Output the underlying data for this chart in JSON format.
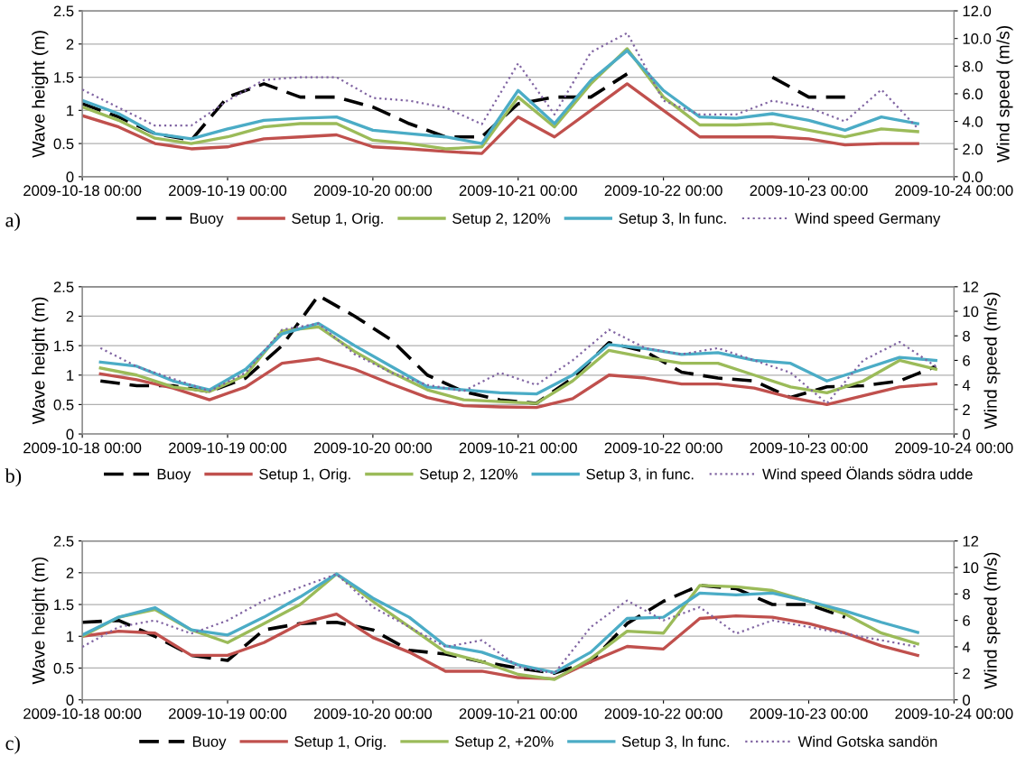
{
  "chart_data": [
    {
      "type": "line",
      "ylabel": "Wave height (m)",
      "y2label": "Wind speed (m/s)",
      "annotations": [
        "a)"
      ],
      "legend": "bottom",
      "grid": "y",
      "marker": "none",
      "x": [
        "2009-10-18T00:00",
        "2009-10-18T06:00",
        "2009-10-18T12:00",
        "2009-10-18T18:00",
        "2009-10-19T00:00",
        "2009-10-19T06:00",
        "2009-10-19T12:00",
        "2009-10-19T18:00",
        "2009-10-20T00:00",
        "2009-10-20T06:00",
        "2009-10-20T12:00",
        "2009-10-20T18:00",
        "2009-10-21T00:00",
        "2009-10-21T06:00",
        "2009-10-21T12:00",
        "2009-10-21T18:00",
        "2009-10-22T00:00",
        "2009-10-22T06:00",
        "2009-10-22T12:00",
        "2009-10-22T18:00",
        "2009-10-23T00:00",
        "2009-10-23T06:00",
        "2009-10-23T12:00",
        "2009-10-23T18:00"
      ],
      "xlim": [
        "2009-10-18T00:00",
        "2009-10-24T00:00"
      ],
      "xticks": [
        {
          "value": "2009-10-18T00:00",
          "label": "2009-10-18 00:00"
        },
        {
          "value": "2009-10-19T00:00",
          "label": "2009-10-19 00:00"
        },
        {
          "value": "2009-10-20T00:00",
          "label": "2009-10-20 00:00"
        },
        {
          "value": "2009-10-21T00:00",
          "label": "2009-10-21 00:00"
        },
        {
          "value": "2009-10-22T00:00",
          "label": "2009-10-22 00:00"
        },
        {
          "value": "2009-10-23T00:00",
          "label": "2009-10-23 00:00"
        },
        {
          "value": "2009-10-24T00:00",
          "label": "2009-10-24 00:00"
        }
      ],
      "ylim": [
        0,
        2.5
      ],
      "yticks": [
        0,
        0.5,
        1,
        1.5,
        2,
        2.5
      ],
      "y2lim": [
        0,
        12
      ],
      "y2ticks": [
        {
          "value": 0,
          "label": "0.0"
        },
        {
          "value": 2,
          "label": "2.0"
        },
        {
          "value": 4,
          "label": "4.0"
        },
        {
          "value": 6,
          "label": "6.0"
        },
        {
          "value": 8,
          "label": "8.0"
        },
        {
          "value": 10,
          "label": "10.0"
        },
        {
          "value": 12,
          "label": "12.0"
        }
      ],
      "series": [
        {
          "name": "Buoy",
          "color": "#000000",
          "line_style": "dashed",
          "values": [
            1.1,
            0.9,
            0.65,
            0.55,
            1.2,
            1.4,
            1.2,
            1.2,
            1.05,
            0.8,
            0.6,
            0.6,
            1.1,
            1.2,
            1.2,
            1.55,
            null,
            null,
            null,
            1.5,
            1.2,
            1.2,
            null,
            null
          ]
        },
        {
          "name": "Setup 1, Orig.",
          "color": "#c0504d",
          "line_style": "solid",
          "values": [
            0.92,
            0.75,
            0.5,
            0.42,
            0.45,
            0.57,
            0.6,
            0.63,
            0.45,
            0.42,
            0.38,
            0.35,
            0.9,
            0.6,
            1.0,
            1.4,
            1.0,
            0.6,
            0.6,
            0.6,
            0.57,
            0.48,
            0.5,
            0.5
          ]
        },
        {
          "name": "Setup 2, 120%",
          "color": "#9bbb59",
          "line_style": "solid",
          "values": [
            1.05,
            0.85,
            0.58,
            0.5,
            0.6,
            0.75,
            0.8,
            0.8,
            0.55,
            0.5,
            0.42,
            0.45,
            1.2,
            0.75,
            1.4,
            1.93,
            1.2,
            0.78,
            0.78,
            0.8,
            0.7,
            0.6,
            0.72,
            0.68
          ]
        },
        {
          "name": "Setup 3, ln func.",
          "color": "#4bacc6",
          "line_style": "solid",
          "values": [
            1.15,
            0.95,
            0.65,
            0.57,
            0.72,
            0.85,
            0.88,
            0.9,
            0.7,
            0.65,
            0.6,
            0.5,
            1.3,
            0.8,
            1.45,
            1.9,
            1.3,
            0.9,
            0.88,
            0.95,
            0.85,
            0.7,
            0.9,
            0.8
          ]
        },
        {
          "name": "Wind speed Germany",
          "color": "#8064a2",
          "line_style": "dotted",
          "axis": "y2",
          "values": [
            6.3,
            5.0,
            3.7,
            3.7,
            5.5,
            7.0,
            7.2,
            7.2,
            5.7,
            5.5,
            5.0,
            3.8,
            8.2,
            4.5,
            9.0,
            10.4,
            5.5,
            4.5,
            4.5,
            5.5,
            5.0,
            4.0,
            6.3,
            3.5
          ]
        }
      ]
    },
    {
      "type": "line",
      "ylabel": "Wave height (m)",
      "y2label": "Wind speed (m/s)",
      "annotations": [
        "b)"
      ],
      "legend": "bottom",
      "grid": "y",
      "marker": "none",
      "x": [
        "2009-10-18T03:00",
        "2009-10-18T09:00",
        "2009-10-18T15:00",
        "2009-10-18T21:00",
        "2009-10-19T03:00",
        "2009-10-19T09:00",
        "2009-10-19T15:00",
        "2009-10-19T21:00",
        "2009-10-20T03:00",
        "2009-10-20T09:00",
        "2009-10-20T15:00",
        "2009-10-20T21:00",
        "2009-10-21T03:00",
        "2009-10-21T09:00",
        "2009-10-21T15:00",
        "2009-10-21T21:00",
        "2009-10-22T03:00",
        "2009-10-22T09:00",
        "2009-10-22T15:00",
        "2009-10-22T21:00",
        "2009-10-23T03:00",
        "2009-10-23T09:00",
        "2009-10-23T15:00",
        "2009-10-23T21:00"
      ],
      "xlim": [
        "2009-10-18T00:00",
        "2009-10-24T00:00"
      ],
      "xticks": [
        {
          "value": "2009-10-18T00:00",
          "label": "2009-10-18 00:00"
        },
        {
          "value": "2009-10-19T00:00",
          "label": "2009-10-19 00:00"
        },
        {
          "value": "2009-10-20T00:00",
          "label": "2009-10-20 00:00"
        },
        {
          "value": "2009-10-21T00:00",
          "label": "2009-10-21 00:00"
        },
        {
          "value": "2009-10-22T00:00",
          "label": "2009-10-22 00:00"
        },
        {
          "value": "2009-10-23T00:00",
          "label": "2009-10-23 00:00"
        },
        {
          "value": "2009-10-24T00:00",
          "label": "2009-10-24 00:00"
        }
      ],
      "ylim": [
        0,
        2.5
      ],
      "yticks": [
        0,
        0.5,
        1,
        1.5,
        2,
        2.5
      ],
      "y2lim": [
        0,
        12
      ],
      "y2ticks": [
        0,
        2,
        4,
        6,
        8,
        10,
        12
      ],
      "series": [
        {
          "name": "Buoy",
          "color": "#000000",
          "line_style": "dashed",
          "values": [
            0.9,
            0.82,
            0.82,
            0.72,
            0.95,
            1.5,
            2.35,
            2.0,
            1.6,
            1.0,
            0.72,
            0.58,
            0.52,
            0.95,
            1.55,
            1.4,
            1.05,
            0.95,
            0.9,
            0.62,
            0.8,
            0.82,
            0.9,
            1.15
          ]
        },
        {
          "name": "Setup 1, Orig.",
          "color": "#c0504d",
          "line_style": "solid",
          "values": [
            1.02,
            0.92,
            0.78,
            0.58,
            0.8,
            1.2,
            1.28,
            1.1,
            0.85,
            0.62,
            0.48,
            0.46,
            0.45,
            0.6,
            1.0,
            0.95,
            0.85,
            0.85,
            0.78,
            0.62,
            0.5,
            0.65,
            0.8,
            0.85
          ]
        },
        {
          "name": "Setup 2, 120%",
          "color": "#9bbb59",
          "line_style": "solid",
          "values": [
            1.12,
            1.0,
            0.8,
            0.72,
            1.0,
            1.75,
            1.82,
            1.4,
            1.05,
            0.75,
            0.58,
            0.55,
            0.52,
            0.9,
            1.42,
            1.3,
            1.2,
            1.2,
            1.0,
            0.8,
            0.7,
            0.9,
            1.25,
            1.1
          ]
        },
        {
          "name": "Setup 3, in func.",
          "color": "#4bacc6",
          "line_style": "solid",
          "values": [
            1.22,
            1.15,
            0.9,
            0.75,
            1.1,
            1.7,
            1.88,
            1.5,
            1.15,
            0.8,
            0.75,
            0.7,
            0.68,
            1.0,
            1.52,
            1.45,
            1.35,
            1.38,
            1.25,
            1.2,
            0.9,
            1.1,
            1.3,
            1.25
          ]
        },
        {
          "name": "Wind speed Ölands södra udde",
          "color": "#8064a2",
          "line_style": "dotted",
          "axis": "y2",
          "values": [
            7.0,
            5.5,
            4.5,
            3.5,
            5.0,
            8.5,
            9.0,
            6.5,
            5.0,
            4.0,
            3.5,
            5.0,
            4.0,
            6.0,
            8.5,
            7.0,
            6.5,
            7.0,
            6.0,
            5.0,
            2.5,
            6.0,
            7.5,
            5.5
          ]
        }
      ]
    },
    {
      "type": "line",
      "ylabel": "Wave height (m)",
      "y2label": "Wind speed (m/s)",
      "annotations": [
        "c)"
      ],
      "legend": "bottom",
      "grid": "y",
      "marker": "none",
      "x": [
        "2009-10-18T00:00",
        "2009-10-18T06:00",
        "2009-10-18T12:00",
        "2009-10-18T18:00",
        "2009-10-19T00:00",
        "2009-10-19T06:00",
        "2009-10-19T12:00",
        "2009-10-19T18:00",
        "2009-10-20T00:00",
        "2009-10-20T06:00",
        "2009-10-20T12:00",
        "2009-10-20T18:00",
        "2009-10-21T00:00",
        "2009-10-21T06:00",
        "2009-10-21T12:00",
        "2009-10-21T18:00",
        "2009-10-22T00:00",
        "2009-10-22T06:00",
        "2009-10-22T12:00",
        "2009-10-22T18:00",
        "2009-10-23T00:00",
        "2009-10-23T06:00",
        "2009-10-23T12:00",
        "2009-10-23T18:00"
      ],
      "xlim": [
        "2009-10-18T00:00",
        "2009-10-24T00:00"
      ],
      "xticks": [
        {
          "value": "2009-10-18T00:00",
          "label": "2009-10-18 00:00"
        },
        {
          "value": "2009-10-19T00:00",
          "label": "2009-10-19 00:00"
        },
        {
          "value": "2009-10-20T00:00",
          "label": "2009-10-20 00:00"
        },
        {
          "value": "2009-10-21T00:00",
          "label": "2009-10-21 00:00"
        },
        {
          "value": "2009-10-22T00:00",
          "label": "2009-10-22 00:00"
        },
        {
          "value": "2009-10-23T00:00",
          "label": "2009-10-23 00:00"
        },
        {
          "value": "2009-10-24T00:00",
          "label": "2009-10-24 00:00"
        }
      ],
      "ylim": [
        0,
        2.5
      ],
      "yticks": [
        0,
        0.5,
        1,
        1.5,
        2,
        2.5
      ],
      "y2lim": [
        0,
        12
      ],
      "y2ticks": [
        0,
        2,
        4,
        6,
        8,
        10,
        12
      ],
      "series": [
        {
          "name": "Buoy",
          "color": "#000000",
          "line_style": "dashed",
          "values": [
            1.22,
            1.25,
            1.0,
            0.7,
            0.62,
            1.1,
            1.2,
            1.22,
            1.1,
            0.78,
            0.72,
            0.6,
            0.5,
            0.42,
            0.6,
            1.2,
            1.55,
            1.8,
            1.75,
            1.5,
            1.5,
            1.3,
            null,
            null
          ]
        },
        {
          "name": "Setup 1, Orig.",
          "color": "#c0504d",
          "line_style": "solid",
          "values": [
            1.0,
            1.08,
            1.05,
            0.7,
            0.7,
            0.9,
            1.2,
            1.35,
            0.98,
            0.75,
            0.45,
            0.45,
            0.35,
            0.33,
            0.6,
            0.84,
            0.8,
            1.28,
            1.32,
            1.3,
            1.2,
            1.05,
            0.85,
            0.7
          ]
        },
        {
          "name": "Setup 2, +20%",
          "color": "#9bbb59",
          "line_style": "solid",
          "values": [
            1.0,
            1.3,
            1.42,
            1.1,
            0.9,
            1.2,
            1.5,
            1.98,
            1.55,
            1.15,
            0.75,
            0.6,
            0.4,
            0.32,
            0.65,
            1.08,
            1.05,
            1.8,
            1.78,
            1.72,
            1.55,
            1.35,
            1.05,
            0.88
          ]
        },
        {
          "name": "Setup 3, ln func.",
          "color": "#4bacc6",
          "line_style": "solid",
          "values": [
            1.02,
            1.3,
            1.45,
            1.1,
            1.02,
            1.3,
            1.62,
            1.98,
            1.6,
            1.3,
            0.85,
            0.75,
            0.55,
            0.43,
            0.75,
            1.28,
            1.3,
            1.68,
            1.65,
            1.68,
            1.55,
            1.4,
            1.22,
            1.06
          ]
        },
        {
          "name": "Wind Gotska sandön",
          "color": "#8064a2",
          "line_style": "dotted",
          "axis": "y2",
          "values": [
            4.0,
            5.5,
            6.0,
            5.0,
            6.0,
            7.5,
            8.5,
            9.5,
            7.0,
            5.5,
            4.0,
            4.5,
            2.5,
            2.0,
            5.5,
            7.5,
            6.0,
            7.0,
            5.0,
            6.0,
            5.5,
            5.0,
            4.5,
            4.0
          ]
        }
      ]
    }
  ]
}
